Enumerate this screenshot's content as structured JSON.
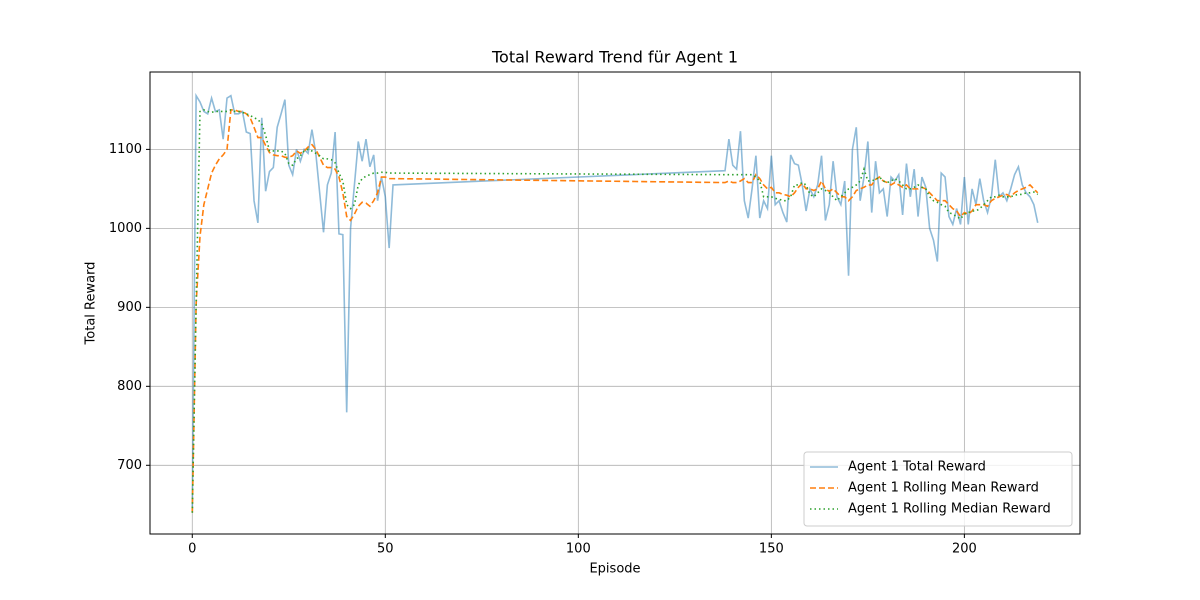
{
  "chart_data": {
    "type": "line",
    "title": "Total Reward Trend für Agent 1",
    "xlabel": "Episode",
    "ylabel": "Total Reward",
    "x": [
      0,
      1,
      2,
      3,
      4,
      5,
      6,
      7,
      8,
      9,
      10,
      11,
      12,
      13,
      14,
      15,
      16,
      17,
      18,
      19,
      20,
      21,
      22,
      23,
      24,
      25,
      26,
      27,
      28,
      29,
      30,
      31,
      32,
      33,
      34,
      35,
      36,
      37,
      38,
      39,
      40,
      41,
      42,
      43,
      44,
      45,
      46,
      47,
      48,
      49,
      50,
      51,
      52,
      138,
      139,
      140,
      141,
      142,
      143,
      144,
      145,
      146,
      147,
      148,
      149,
      150,
      151,
      152,
      153,
      154,
      155,
      156,
      157,
      158,
      159,
      160,
      161,
      162,
      163,
      164,
      165,
      166,
      167,
      168,
      169,
      170,
      171,
      172,
      173,
      174,
      175,
      176,
      177,
      178,
      179,
      180,
      181,
      182,
      183,
      184,
      185,
      186,
      187,
      188,
      189,
      190,
      191,
      192,
      193,
      194,
      195,
      196,
      197,
      198,
      199,
      200,
      201,
      202,
      203,
      204,
      205,
      206,
      207,
      208,
      209,
      210,
      211,
      212,
      213,
      214,
      215,
      216,
      217,
      218,
      219
    ],
    "series": [
      {
        "name": "Agent 1 Total Reward",
        "color": "#1f77b4",
        "opacity": 0.5,
        "dash": "solid",
        "values": [
          640,
          1168,
          1160,
          1148,
          1145,
          1165,
          1148,
          1150,
          1113,
          1165,
          1168,
          1145,
          1145,
          1148,
          1122,
          1120,
          1035,
          1007,
          1140,
          1047,
          1072,
          1077,
          1128,
          1145,
          1163,
          1080,
          1068,
          1100,
          1085,
          1100,
          1095,
          1125,
          1095,
          1045,
          995,
          1055,
          1070,
          1122,
          993,
          992,
          767,
          1000,
          1055,
          1110,
          1085,
          1113,
          1078,
          1093,
          1035,
          1065,
          1040,
          975,
          1055,
          1073,
          1113,
          1080,
          1075,
          1123,
          1035,
          1013,
          1050,
          1092,
          1013,
          1035,
          1025,
          1092,
          1030,
          1035,
          1020,
          1008,
          1093,
          1082,
          1080,
          1055,
          1022,
          1050,
          1040,
          1055,
          1092,
          1010,
          1030,
          1085,
          1040,
          1030,
          1060,
          940,
          1100,
          1128,
          1035,
          1065,
          1110,
          1020,
          1085,
          1045,
          1050,
          1015,
          1065,
          1060,
          1068,
          1017,
          1082,
          1040,
          1075,
          1015,
          1065,
          1052,
          1000,
          985,
          958,
          1070,
          1065,
          1015,
          1005,
          1025,
          1005,
          1065,
          1005,
          1050,
          1030,
          1063,
          1035,
          1020,
          1040,
          1087,
          1040,
          1045,
          1035,
          1050,
          1068,
          1078,
          1055,
          1045,
          1040,
          1030,
          1007
        ]
      },
      {
        "name": "Agent 1 Rolling Mean Reward",
        "color": "#ff7f0e",
        "opacity": 1,
        "dash": "dashed",
        "values": [
          640,
          904,
          990,
          1030,
          1050,
          1070,
          1080,
          1088,
          1093,
          1100,
          1150,
          1150,
          1148,
          1148,
          1145,
          1140,
          1128,
          1115,
          1115,
          1105,
          1096,
          1093,
          1092,
          1092,
          1090,
          1090,
          1092,
          1098,
          1095,
          1098,
          1103,
          1106,
          1100,
          1090,
          1080,
          1077,
          1077,
          1075,
          1065,
          1045,
          1015,
          1010,
          1018,
          1028,
          1033,
          1032,
          1028,
          1035,
          1045,
          1065,
          1065,
          1063,
          1063,
          1058,
          1060,
          1058,
          1058,
          1060,
          1063,
          1058,
          1058,
          1068,
          1063,
          1055,
          1050,
          1052,
          1045,
          1045,
          1043,
          1042,
          1040,
          1045,
          1052,
          1057,
          1050,
          1050,
          1048,
          1050,
          1060,
          1050,
          1047,
          1050,
          1045,
          1040,
          1040,
          1035,
          1040,
          1048,
          1050,
          1052,
          1055,
          1055,
          1062,
          1065,
          1060,
          1058,
          1055,
          1058,
          1055,
          1052,
          1055,
          1050,
          1050,
          1050,
          1052,
          1050,
          1045,
          1040,
          1035,
          1035,
          1035,
          1030,
          1025,
          1022,
          1015,
          1020,
          1018,
          1022,
          1030,
          1030,
          1030,
          1028,
          1035,
          1038,
          1040,
          1042,
          1043,
          1040,
          1045,
          1048,
          1050,
          1052,
          1055,
          1050,
          1045
        ]
      },
      {
        "name": "Agent 1 Rolling Median Reward",
        "color": "#2ca02c",
        "opacity": 1,
        "dash": "dotted",
        "values": [
          640,
          904,
          1148,
          1150,
          1148,
          1147,
          1148,
          1148,
          1148,
          1148,
          1150,
          1148,
          1148,
          1147,
          1145,
          1143,
          1140,
          1138,
          1132,
          1118,
          1098,
          1098,
          1098,
          1098,
          1095,
          1082,
          1080,
          1088,
          1092,
          1098,
          1100,
          1098,
          1095,
          1092,
          1088,
          1088,
          1087,
          1083,
          1070,
          1060,
          1030,
          1025,
          1030,
          1055,
          1063,
          1066,
          1068,
          1070,
          1070,
          1071,
          1071,
          1070,
          1070,
          1068,
          1068,
          1068,
          1068,
          1068,
          1068,
          1068,
          1068,
          1065,
          1060,
          1040,
          1040,
          1040,
          1038,
          1037,
          1035,
          1035,
          1040,
          1055,
          1055,
          1058,
          1055,
          1043,
          1040,
          1045,
          1050,
          1048,
          1045,
          1040,
          1035,
          1040,
          1045,
          1050,
          1052,
          1055,
          1060,
          1075,
          1060,
          1060,
          1062,
          1065,
          1060,
          1058,
          1060,
          1063,
          1060,
          1055,
          1050,
          1050,
          1052,
          1055,
          1052,
          1050,
          1040,
          1035,
          1033,
          1030,
          1028,
          1020,
          1018,
          1015,
          1012,
          1018,
          1020,
          1022,
          1022,
          1025,
          1030,
          1035,
          1040,
          1040,
          1042,
          1040,
          1040,
          1040,
          1042,
          1043,
          1043,
          1045,
          1045,
          1046,
          1043
        ]
      }
    ],
    "xlim": [
      -10.95,
      229.95
    ],
    "ylim": [
      613,
      1198
    ],
    "xticks": [
      0,
      50,
      100,
      150,
      200
    ],
    "yticks": [
      700,
      800,
      900,
      1000,
      1100
    ],
    "grid": true,
    "legend": "lower right"
  }
}
